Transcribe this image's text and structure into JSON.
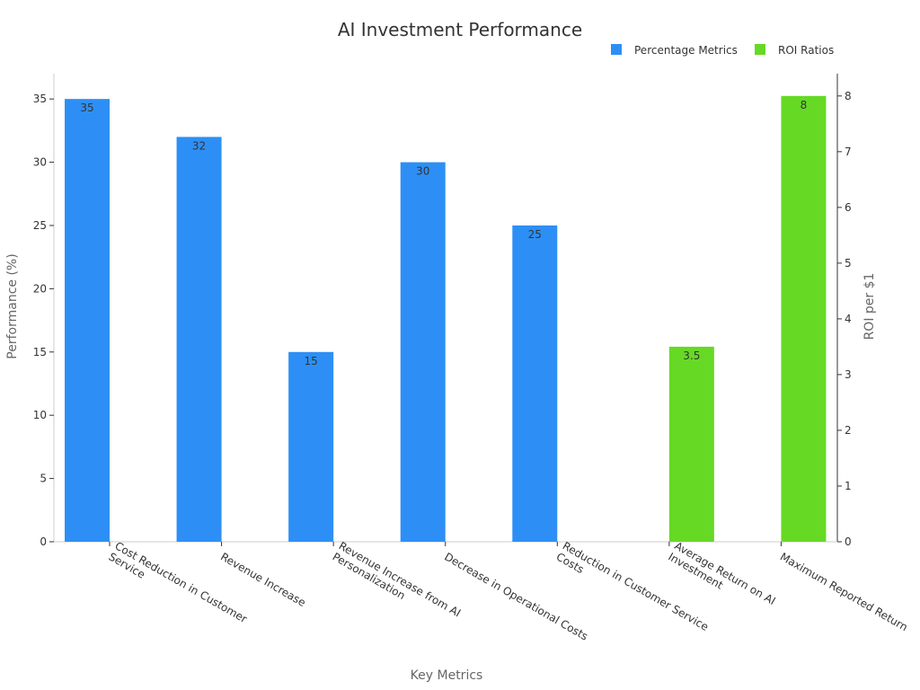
{
  "chart_data": {
    "type": "bar",
    "title": "AI Investment Performance",
    "xlabel": "Key Metrics",
    "ylabel": "Performance (%)",
    "y2label": "ROI per $1",
    "categories": [
      [
        "Cost Reduction in Customer",
        "Service"
      ],
      [
        "Revenue Increase"
      ],
      [
        "Revenue Increase from AI",
        "Personalization"
      ],
      [
        "Decrease in Operational Costs"
      ],
      [
        "Reduction in Customer Service",
        "Costs"
      ],
      [
        "Average Return on AI",
        "Investment"
      ],
      [
        "Maximum Reported Return"
      ]
    ],
    "series": [
      {
        "name": "Percentage Metrics",
        "axis": "left",
        "color": "#2d8ff5",
        "values": [
          35,
          32,
          15,
          30,
          25,
          null,
          null
        ],
        "labels": [
          "35",
          "32",
          "15",
          "30",
          "25",
          null,
          null
        ]
      },
      {
        "name": "ROI Ratios",
        "axis": "right",
        "color": "#66d925",
        "values": [
          null,
          null,
          null,
          null,
          null,
          3.5,
          8
        ],
        "labels": [
          null,
          null,
          null,
          null,
          null,
          "3.5",
          "8"
        ]
      }
    ],
    "ylim": [
      0,
      37
    ],
    "y_ticks": [
      "0",
      "5",
      "10",
      "15",
      "20",
      "25",
      "30",
      "35"
    ],
    "y2lim": [
      0,
      8.4
    ],
    "y2_ticks": [
      "0",
      "1",
      "2",
      "3",
      "4",
      "5",
      "6",
      "7",
      "8"
    ],
    "legend_position": "top-right",
    "grid": false
  }
}
